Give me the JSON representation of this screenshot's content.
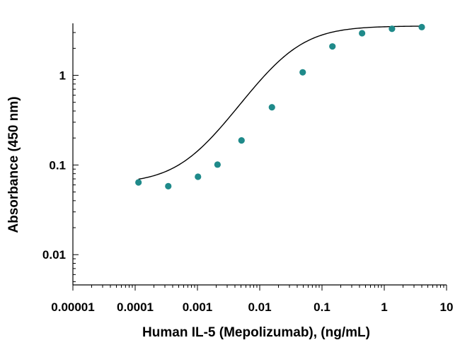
{
  "chart_data": {
    "type": "scatter",
    "title": "",
    "xlabel": "Human IL-5 (Mepolizumab), (ng/mL)",
    "ylabel": "Absorbance (450 nm)",
    "xscale": "log",
    "yscale": "log",
    "xlim": [
      1e-05,
      10
    ],
    "ylim": [
      0.0046,
      3.8
    ],
    "x_ticks": [
      1e-05,
      0.0001,
      0.001,
      0.01,
      0.1,
      1,
      10
    ],
    "x_tick_labels": [
      "0.00001",
      "0.0001",
      "0.001",
      "0.01",
      "0.1",
      "1",
      "10"
    ],
    "y_ticks": [
      0.01,
      0.1,
      1
    ],
    "y_tick_labels": [
      "0.01",
      "0.1",
      "1"
    ],
    "grid": false,
    "legend": "none",
    "series": [
      {
        "name": "Absorbance",
        "marker_color": "#1f8a8a",
        "x": [
          0.000113,
          0.00034,
          0.00102,
          0.0021,
          0.0051,
          0.0157,
          0.049,
          0.147,
          0.44,
          1.33,
          4.0
        ],
        "y": [
          0.064,
          0.058,
          0.074,
          0.101,
          0.188,
          0.44,
          1.08,
          2.1,
          2.95,
          3.3,
          3.45
        ]
      }
    ],
    "fit_curve": {
      "model": "4PL",
      "bottom": 0.062,
      "top": 3.55,
      "ec50": 0.03,
      "hill": 1.1,
      "x_range": [
        0.000113,
        4.0
      ],
      "color": "#000000"
    }
  }
}
